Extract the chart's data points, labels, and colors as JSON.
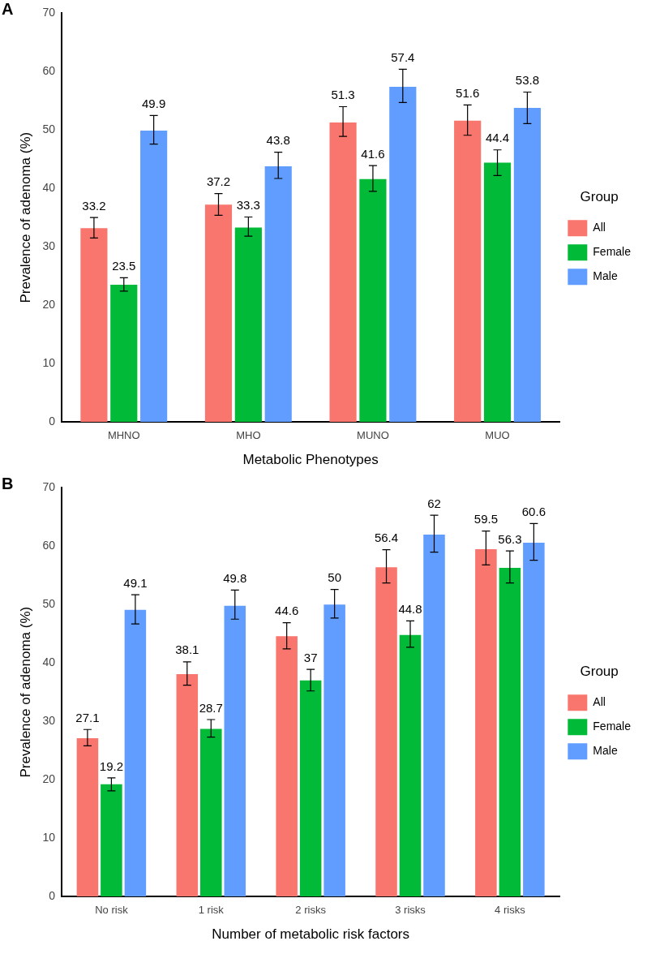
{
  "chart_data": [
    {
      "type": "bar",
      "title": "A",
      "xlabel": "Metabolic Phenotypes",
      "ylabel": "Prevalence of adenoma (%)",
      "legend_title": "Group",
      "legend": "right",
      "grid": false,
      "data_labels": true,
      "categories": [
        "MHNO",
        "MHO",
        "MUNO",
        "MUO"
      ],
      "ylim": [
        0,
        70
      ],
      "yticks": [
        0,
        10,
        20,
        30,
        40,
        50,
        60,
        70
      ],
      "series": [
        {
          "name": "All",
          "color": "#f8766d",
          "values": [
            33.2,
            37.2,
            51.3,
            51.6
          ],
          "errors": [
            [
              31.5,
              35.0
            ],
            [
              35.4,
              39.1
            ],
            [
              48.9,
              54.0
            ],
            [
              49.1,
              54.3
            ]
          ]
        },
        {
          "name": "Female",
          "color": "#00ba38",
          "values": [
            23.5,
            33.3,
            41.6,
            44.4
          ],
          "errors": [
            [
              22.4,
              24.7
            ],
            [
              31.8,
              35.1
            ],
            [
              39.5,
              43.9
            ],
            [
              42.2,
              46.6
            ]
          ]
        },
        {
          "name": "Male",
          "color": "#619cff",
          "values": [
            49.9,
            43.8,
            57.4,
            53.8
          ],
          "errors": [
            [
              47.6,
              52.5
            ],
            [
              41.7,
              46.2
            ],
            [
              54.7,
              60.4
            ],
            [
              51.1,
              56.5
            ]
          ]
        }
      ]
    },
    {
      "type": "bar",
      "title": "B",
      "xlabel": "Number of metabolic risk factors",
      "ylabel": "Prevalence of adenoma (%)",
      "legend_title": "Group",
      "legend": "right",
      "grid": false,
      "data_labels": true,
      "categories": [
        "No risk",
        "1 risk",
        "2 risks",
        "3 risks",
        "4 risks"
      ],
      "ylim": [
        0,
        70
      ],
      "yticks": [
        0,
        10,
        20,
        30,
        40,
        50,
        60,
        70
      ],
      "series": [
        {
          "name": "All",
          "color": "#f8766d",
          "values": [
            27.1,
            38.1,
            44.6,
            56.4,
            59.5
          ],
          "errors": [
            [
              25.8,
              28.6
            ],
            [
              36.2,
              40.2
            ],
            [
              42.4,
              46.9
            ],
            [
              53.7,
              59.4
            ],
            [
              56.8,
              62.6
            ]
          ]
        },
        {
          "name": "Female",
          "color": "#00ba38",
          "values": [
            19.2,
            28.7,
            37,
            44.8,
            56.3
          ],
          "errors": [
            [
              18.1,
              20.3
            ],
            [
              27.3,
              30.3
            ],
            [
              35.2,
              38.9
            ],
            [
              42.7,
              47.2
            ],
            [
              53.7,
              59.2
            ]
          ]
        },
        {
          "name": "Male",
          "color": "#619cff",
          "values": [
            49.1,
            49.8,
            50,
            62,
            60.6
          ],
          "errors": [
            [
              46.7,
              51.7
            ],
            [
              47.5,
              52.5
            ],
            [
              47.7,
              52.6
            ],
            [
              59.0,
              65.3
            ],
            [
              57.6,
              63.9
            ]
          ]
        }
      ]
    }
  ]
}
